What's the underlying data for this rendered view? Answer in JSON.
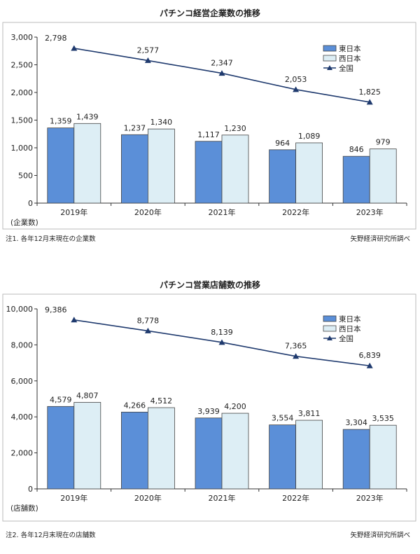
{
  "chart_data": [
    {
      "type": "bar",
      "title": "パチンコ経営企業数の推移",
      "categories": [
        "2019年",
        "2020年",
        "2021年",
        "2022年",
        "2023年"
      ],
      "ylabel": "(企業数)",
      "ylim": [
        0,
        3000
      ],
      "yticks": [
        0,
        500,
        1000,
        1500,
        2000,
        2500,
        3000
      ],
      "ytick_labels": [
        "0",
        "500",
        "1,000",
        "1,500",
        "2,000",
        "2,500",
        "3,000"
      ],
      "series": [
        {
          "name": "東日本",
          "kind": "bar",
          "values": [
            1359,
            1237,
            1117,
            964,
            846
          ],
          "labels": [
            "1,359",
            "1,237",
            "1,117",
            "964",
            "846"
          ],
          "color": "#5b8fd8"
        },
        {
          "name": "西日本",
          "kind": "bar",
          "values": [
            1439,
            1340,
            1230,
            1089,
            979
          ],
          "labels": [
            "1,439",
            "1,340",
            "1,230",
            "1,089",
            "979"
          ],
          "color": "#ddeef5"
        },
        {
          "name": "全国",
          "kind": "line",
          "values": [
            2798,
            2577,
            2347,
            2053,
            1825
          ],
          "labels": [
            "2,798",
            "2,577",
            "2,347",
            "2,053",
            "1,825"
          ],
          "color": "#1f3a6e"
        }
      ],
      "legend": "top-right",
      "grid": false,
      "note_left": "注1. 各年12月末現在の企業数",
      "note_right": "矢野経済研究所調べ"
    },
    {
      "type": "bar",
      "title": "パチンコ営業店舗数の推移",
      "categories": [
        "2019年",
        "2020年",
        "2021年",
        "2022年",
        "2023年"
      ],
      "ylabel": "(店舗数)",
      "ylim": [
        0,
        10000
      ],
      "yticks": [
        0,
        2000,
        4000,
        6000,
        8000,
        10000
      ],
      "ytick_labels": [
        "0",
        "2,000",
        "4,000",
        "6,000",
        "8,000",
        "10,000"
      ],
      "series": [
        {
          "name": "東日本",
          "kind": "bar",
          "values": [
            4579,
            4266,
            3939,
            3554,
            3304
          ],
          "labels": [
            "4,579",
            "4,266",
            "3,939",
            "3,554",
            "3,304"
          ],
          "color": "#5b8fd8"
        },
        {
          "name": "西日本",
          "kind": "bar",
          "values": [
            4807,
            4512,
            4200,
            3811,
            3535
          ],
          "labels": [
            "4,807",
            "4,512",
            "4,200",
            "3,811",
            "3,535"
          ],
          "color": "#ddeef5"
        },
        {
          "name": "全国",
          "kind": "line",
          "values": [
            9386,
            8778,
            8139,
            7365,
            6839
          ],
          "labels": [
            "9,386",
            "8,778",
            "8,139",
            "7,365",
            "6,839"
          ],
          "color": "#1f3a6e"
        }
      ],
      "legend": "top-right",
      "grid": false,
      "note_left": "注2. 各年12月末現在の店舗数",
      "note_right": "矢野経済研究所調べ"
    }
  ]
}
